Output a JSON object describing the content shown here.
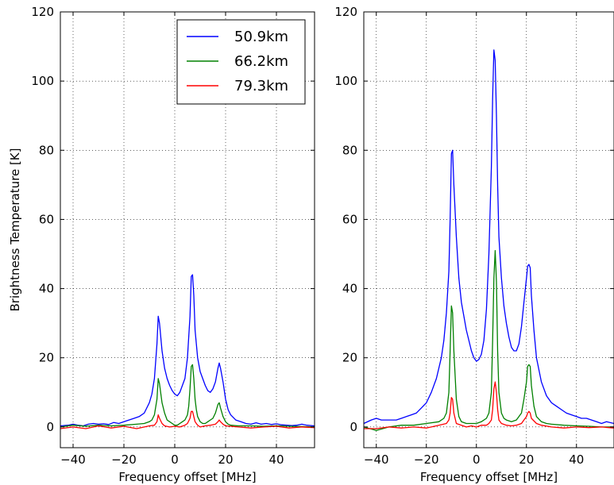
{
  "chart_data": [
    {
      "type": "line",
      "xlabel": "Frequency offset [MHz]",
      "ylabel": "Brightness Temperature [K]",
      "xlim": [
        -45,
        55
      ],
      "ylim": [
        -6,
        120
      ],
      "xticks": [
        -40,
        -20,
        0,
        20,
        40
      ],
      "yticks": [
        0,
        20,
        40,
        60,
        80,
        100,
        120
      ],
      "grid": true,
      "legend": {
        "placement": "top-right"
      },
      "colors": [
        "#0000ff",
        "#008000",
        "#ff0000"
      ],
      "series": [
        {
          "name": "50.9km",
          "x": [
            -45,
            -42,
            -40,
            -38,
            -36,
            -34,
            -32,
            -30,
            -28,
            -26,
            -24,
            -22,
            -20,
            -18,
            -16,
            -14,
            -12,
            -10,
            -9,
            -8,
            -7,
            -6.5,
            -6,
            -5,
            -4,
            -3,
            -2,
            -1,
            0,
            1,
            2,
            3,
            4,
            5,
            6,
            6.5,
            7,
            7.5,
            8,
            9,
            10,
            11,
            12,
            13,
            14,
            15,
            16,
            17,
            17.5,
            18,
            19,
            20,
            21,
            22,
            24,
            26,
            28,
            30,
            32,
            34,
            36,
            38,
            40,
            42,
            44,
            46,
            48,
            50,
            52,
            55
          ],
          "y": [
            0.3,
            0.5,
            0.8,
            0.5,
            0.3,
            0.8,
            1.0,
            0.8,
            0.9,
            0.7,
            1.3,
            1.0,
            1.5,
            2.0,
            2.5,
            3.0,
            4.0,
            7.0,
            9.5,
            14.0,
            24.0,
            32.0,
            30.0,
            22.0,
            17.0,
            14.0,
            12.0,
            10.5,
            9.5,
            9.0,
            10.0,
            12.0,
            14.0,
            20.0,
            32.0,
            43.5,
            44.0,
            38.0,
            28.0,
            20.0,
            16.0,
            14.0,
            12.0,
            10.5,
            10.0,
            11.0,
            13.0,
            17.0,
            18.5,
            17.0,
            13.0,
            8.0,
            5.0,
            3.5,
            2.0,
            1.5,
            1.0,
            0.8,
            1.2,
            0.8,
            1.0,
            0.7,
            0.9,
            0.6,
            0.5,
            0.4,
            0.5,
            0.8,
            0.5,
            0.3
          ]
        },
        {
          "name": "66.2km",
          "x": [
            -45,
            -40,
            -35,
            -30,
            -25,
            -20,
            -15,
            -12,
            -10,
            -9,
            -8,
            -7,
            -6.5,
            -6,
            -5,
            -4,
            -3,
            -2,
            -1,
            0,
            1,
            2,
            3,
            4,
            5,
            5.5,
            6,
            6.5,
            7,
            7.5,
            8,
            8.5,
            9,
            10,
            11,
            12,
            13,
            14,
            15,
            16,
            17,
            17.5,
            18,
            19,
            20,
            21,
            22,
            25,
            30,
            35,
            40,
            45,
            50,
            55
          ],
          "y": [
            0.0,
            0.5,
            0.2,
            0.5,
            0.3,
            0.5,
            0.8,
            1.0,
            1.5,
            2.0,
            3.5,
            8.0,
            14.0,
            12.5,
            7.0,
            4.0,
            2.0,
            1.5,
            1.0,
            0.5,
            0.5,
            1.0,
            1.5,
            2.0,
            3.5,
            6.0,
            11.0,
            17.5,
            18.0,
            14.0,
            8.0,
            5.0,
            3.0,
            1.5,
            1.0,
            1.0,
            1.5,
            2.0,
            2.5,
            4.0,
            6.5,
            7.0,
            5.5,
            3.0,
            1.5,
            0.8,
            0.5,
            0.3,
            0.3,
            0.2,
            0.3,
            0.2,
            0.1,
            0.0
          ]
        },
        {
          "name": "79.3km",
          "x": [
            -45,
            -40,
            -35,
            -30,
            -25,
            -20,
            -15,
            -10,
            -8,
            -7,
            -6.5,
            -6,
            -5,
            -4,
            -2,
            0,
            2,
            4,
            5,
            6,
            6.5,
            7,
            7.5,
            8,
            9,
            10,
            12,
            14,
            16,
            17,
            17.5,
            18,
            19,
            20,
            25,
            30,
            35,
            40,
            45,
            50,
            55
          ],
          "y": [
            -0.5,
            0.0,
            -0.5,
            0.3,
            -0.3,
            0.2,
            -0.5,
            0.3,
            0.5,
            1.5,
            3.5,
            2.5,
            1.0,
            0.3,
            0.0,
            0.2,
            0.0,
            0.5,
            1.0,
            2.5,
            4.5,
            4.5,
            3.0,
            1.5,
            0.5,
            0.0,
            0.3,
            0.5,
            0.8,
            1.5,
            2.0,
            1.5,
            0.8,
            0.3,
            0.0,
            -0.3,
            0.0,
            0.2,
            -0.3,
            0.0,
            -0.2
          ]
        }
      ]
    },
    {
      "type": "line",
      "xlabel": "Frequency offset [MHz]",
      "ylabel": "",
      "xlim": [
        -45,
        55
      ],
      "ylim": [
        -6,
        120
      ],
      "xticks": [
        -40,
        -20,
        0,
        20,
        40
      ],
      "yticks": [
        0,
        20,
        40,
        60,
        80,
        100,
        120
      ],
      "grid": true,
      "colors": [
        "#0000ff",
        "#008000",
        "#ff0000"
      ],
      "series": [
        {
          "x": [
            -45,
            -42,
            -40,
            -38,
            -36,
            -34,
            -32,
            -30,
            -28,
            -26,
            -24,
            -22,
            -20,
            -18,
            -16,
            -14,
            -13,
            -12,
            -11,
            -10.5,
            -10,
            -9.5,
            -9,
            -8,
            -7,
            -6,
            -5,
            -4,
            -3,
            -2,
            -1,
            0,
            1,
            2,
            3,
            4,
            5,
            6,
            6.5,
            7,
            7.5,
            8,
            8.5,
            9,
            10,
            11,
            12,
            13,
            14,
            15,
            16,
            17,
            18,
            19,
            20,
            20.5,
            21,
            21.5,
            22,
            23,
            24,
            26,
            28,
            30,
            32,
            34,
            36,
            38,
            40,
            42,
            44,
            46,
            48,
            50,
            52,
            55
          ],
          "y": [
            1.0,
            2.0,
            2.5,
            2.0,
            2.0,
            2.0,
            2.0,
            2.5,
            3.0,
            3.5,
            4.0,
            5.5,
            7.0,
            10.0,
            14.0,
            20.0,
            25.0,
            33.0,
            45.0,
            60.0,
            79.0,
            80.0,
            70.0,
            55.0,
            43.0,
            36.0,
            32.0,
            28.0,
            25.0,
            22.0,
            20.0,
            19.0,
            19.5,
            21.0,
            25.0,
            34.0,
            50.0,
            75.0,
            95.0,
            109.0,
            106.0,
            90.0,
            70.0,
            55.0,
            43.0,
            35.0,
            30.0,
            26.0,
            23.0,
            22.0,
            22.0,
            24.0,
            29.0,
            36.0,
            43.0,
            46.5,
            47.0,
            46.0,
            38.0,
            28.0,
            20.0,
            13.0,
            9.0,
            7.0,
            6.0,
            5.0,
            4.0,
            3.5,
            3.0,
            2.5,
            2.5,
            2.0,
            1.5,
            1.0,
            1.5,
            1.0
          ]
        },
        {
          "x": [
            -45,
            -40,
            -35,
            -30,
            -25,
            -20,
            -15,
            -13,
            -12,
            -11,
            -10.5,
            -10,
            -9.5,
            -9,
            -8,
            -7,
            -6,
            -4,
            -2,
            0,
            2,
            4,
            5,
            6,
            6.5,
            7,
            7.5,
            8,
            8.5,
            9,
            10,
            11,
            12,
            14,
            16,
            18,
            19,
            20,
            20.5,
            21,
            21.5,
            22,
            23,
            24,
            26,
            28,
            30,
            35,
            40,
            45,
            50,
            55
          ],
          "y": [
            0.0,
            -1.0,
            0.0,
            0.5,
            0.5,
            1.0,
            1.5,
            2.5,
            4.0,
            10.0,
            22.0,
            35.0,
            33.0,
            22.0,
            8.0,
            3.0,
            1.5,
            1.0,
            1.0,
            1.0,
            1.5,
            2.5,
            4.0,
            10.0,
            25.0,
            43.0,
            51.0,
            42.0,
            22.0,
            10.0,
            4.0,
            2.5,
            2.0,
            1.5,
            2.0,
            4.0,
            8.0,
            13.0,
            17.5,
            18.0,
            17.5,
            12.0,
            6.0,
            3.0,
            1.5,
            1.0,
            0.8,
            0.5,
            0.3,
            0.2,
            0.0,
            0.0
          ]
        },
        {
          "x": [
            -45,
            -40,
            -35,
            -30,
            -25,
            -20,
            -15,
            -12,
            -11,
            -10.5,
            -10,
            -9.5,
            -9,
            -8,
            -6,
            -4,
            -2,
            0,
            2,
            4,
            5,
            6,
            6.5,
            7,
            7.5,
            8,
            8.5,
            9,
            10,
            12,
            14,
            16,
            18,
            19,
            20,
            20.5,
            21,
            21.5,
            22,
            24,
            26,
            30,
            35,
            40,
            45,
            50,
            55
          ],
          "y": [
            -0.5,
            -0.5,
            0.0,
            -0.3,
            0.0,
            -0.3,
            0.5,
            1.0,
            2.0,
            4.0,
            8.5,
            8.0,
            4.0,
            1.0,
            0.5,
            0.0,
            0.3,
            0.0,
            0.5,
            0.5,
            1.0,
            2.0,
            5.0,
            11.0,
            13.0,
            10.0,
            5.0,
            2.0,
            1.0,
            0.5,
            0.3,
            0.5,
            1.0,
            2.0,
            3.0,
            4.0,
            4.5,
            4.0,
            2.5,
            1.0,
            0.5,
            0.0,
            -0.3,
            0.0,
            -0.2,
            0.0,
            -0.3
          ]
        }
      ]
    }
  ]
}
